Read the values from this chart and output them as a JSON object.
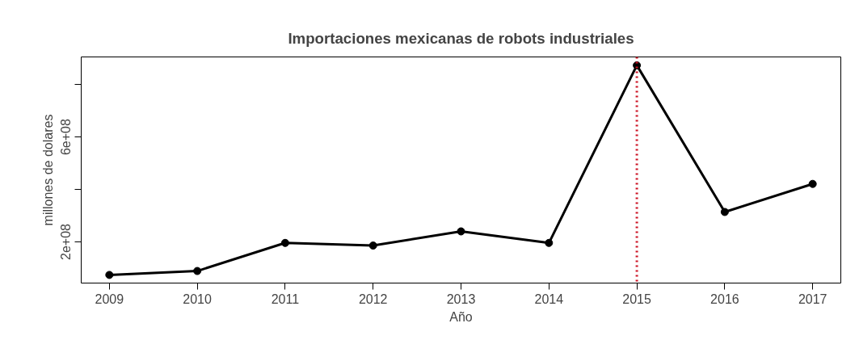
{
  "chart_data": {
    "type": "line",
    "title": "Importaciones mexicanas de robots industriales",
    "xlabel": "Año",
    "ylabel": "millones de dolares",
    "x": [
      2009,
      2010,
      2011,
      2012,
      2013,
      2014,
      2015,
      2016,
      2017
    ],
    "series": [
      {
        "color": "#000000",
        "values": [
          74000000,
          89000000,
          196000000,
          186000000,
          240000000,
          196000000,
          873000000,
          314000000,
          421000000
        ]
      }
    ],
    "xlim": [
      2008.68,
      2017.32
    ],
    "ylim": [
      43000000,
      905000000
    ],
    "xticks": [
      2009,
      2010,
      2011,
      2012,
      2013,
      2014,
      2015,
      2016,
      2017
    ],
    "yticks": [
      {
        "value": 200000000,
        "label": "2e+08"
      },
      {
        "value": 400000000,
        "label": null
      },
      {
        "value": 600000000,
        "label": "6e+08"
      },
      {
        "value": 800000000,
        "label": null
      }
    ],
    "ref_lines": [
      {
        "axis": "x",
        "value": 2015,
        "color": "#cc1122",
        "line_style": "dotted"
      }
    ],
    "marker": "circle",
    "line_style": "solid",
    "grid": false
  }
}
